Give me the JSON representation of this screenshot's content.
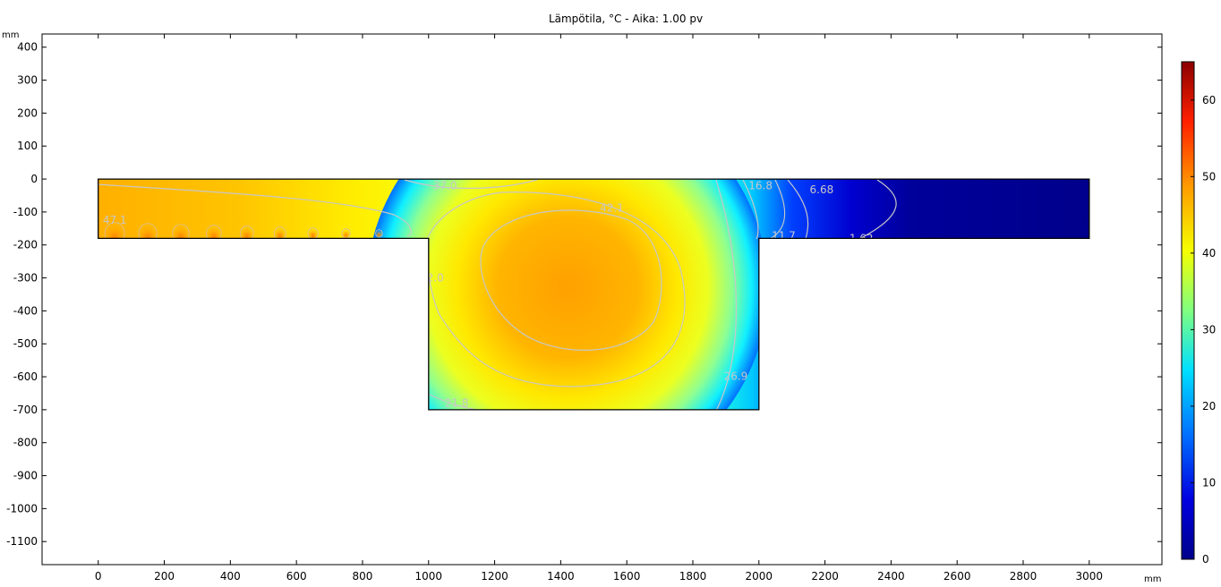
{
  "chart_data": {
    "type": "heatmap",
    "title": "Lämpötila, °C - Aika: 1.00 pv",
    "xunit": "mm",
    "yunit": "mm",
    "xlim": [
      -170,
      3220
    ],
    "ylim": [
      -1170,
      440
    ],
    "xticks": [
      0,
      200,
      400,
      600,
      800,
      1000,
      1200,
      1400,
      1600,
      1800,
      2000,
      2200,
      2400,
      2600,
      2800,
      3000
    ],
    "yticks": [
      400,
      300,
      200,
      100,
      0,
      -100,
      -200,
      -300,
      -400,
      -500,
      -600,
      -700,
      -800,
      -900,
      -1000,
      -1100
    ],
    "colorbar": {
      "min": 0,
      "max": 65,
      "ticks": [
        0,
        10,
        20,
        30,
        40,
        50,
        60
      ]
    },
    "geometry": [
      [
        0,
        0
      ],
      [
        3000,
        0
      ],
      [
        3000,
        -180
      ],
      [
        2000,
        -180
      ],
      [
        2000,
        -700
      ],
      [
        1000,
        -700
      ],
      [
        1000,
        -180
      ],
      [
        0,
        -180
      ]
    ],
    "contour_labels": [
      {
        "text": "37.0",
        "x": 1050,
        "y": -20
      },
      {
        "text": "42.1",
        "x": 1555,
        "y": -88
      },
      {
        "text": "47.1",
        "x": 50,
        "y": -125
      },
      {
        "text": "32.0",
        "x": 1010,
        "y": -300
      },
      {
        "text": "16.8",
        "x": 2005,
        "y": -20
      },
      {
        "text": "6.68",
        "x": 2190,
        "y": -32
      },
      {
        "text": "11.7",
        "x": 2075,
        "y": -172
      },
      {
        "text": "1.62",
        "x": 2310,
        "y": -180
      },
      {
        "text": "26.9",
        "x": 1930,
        "y": -598
      },
      {
        "text": "21.8",
        "x": 1085,
        "y": -680
      }
    ]
  }
}
